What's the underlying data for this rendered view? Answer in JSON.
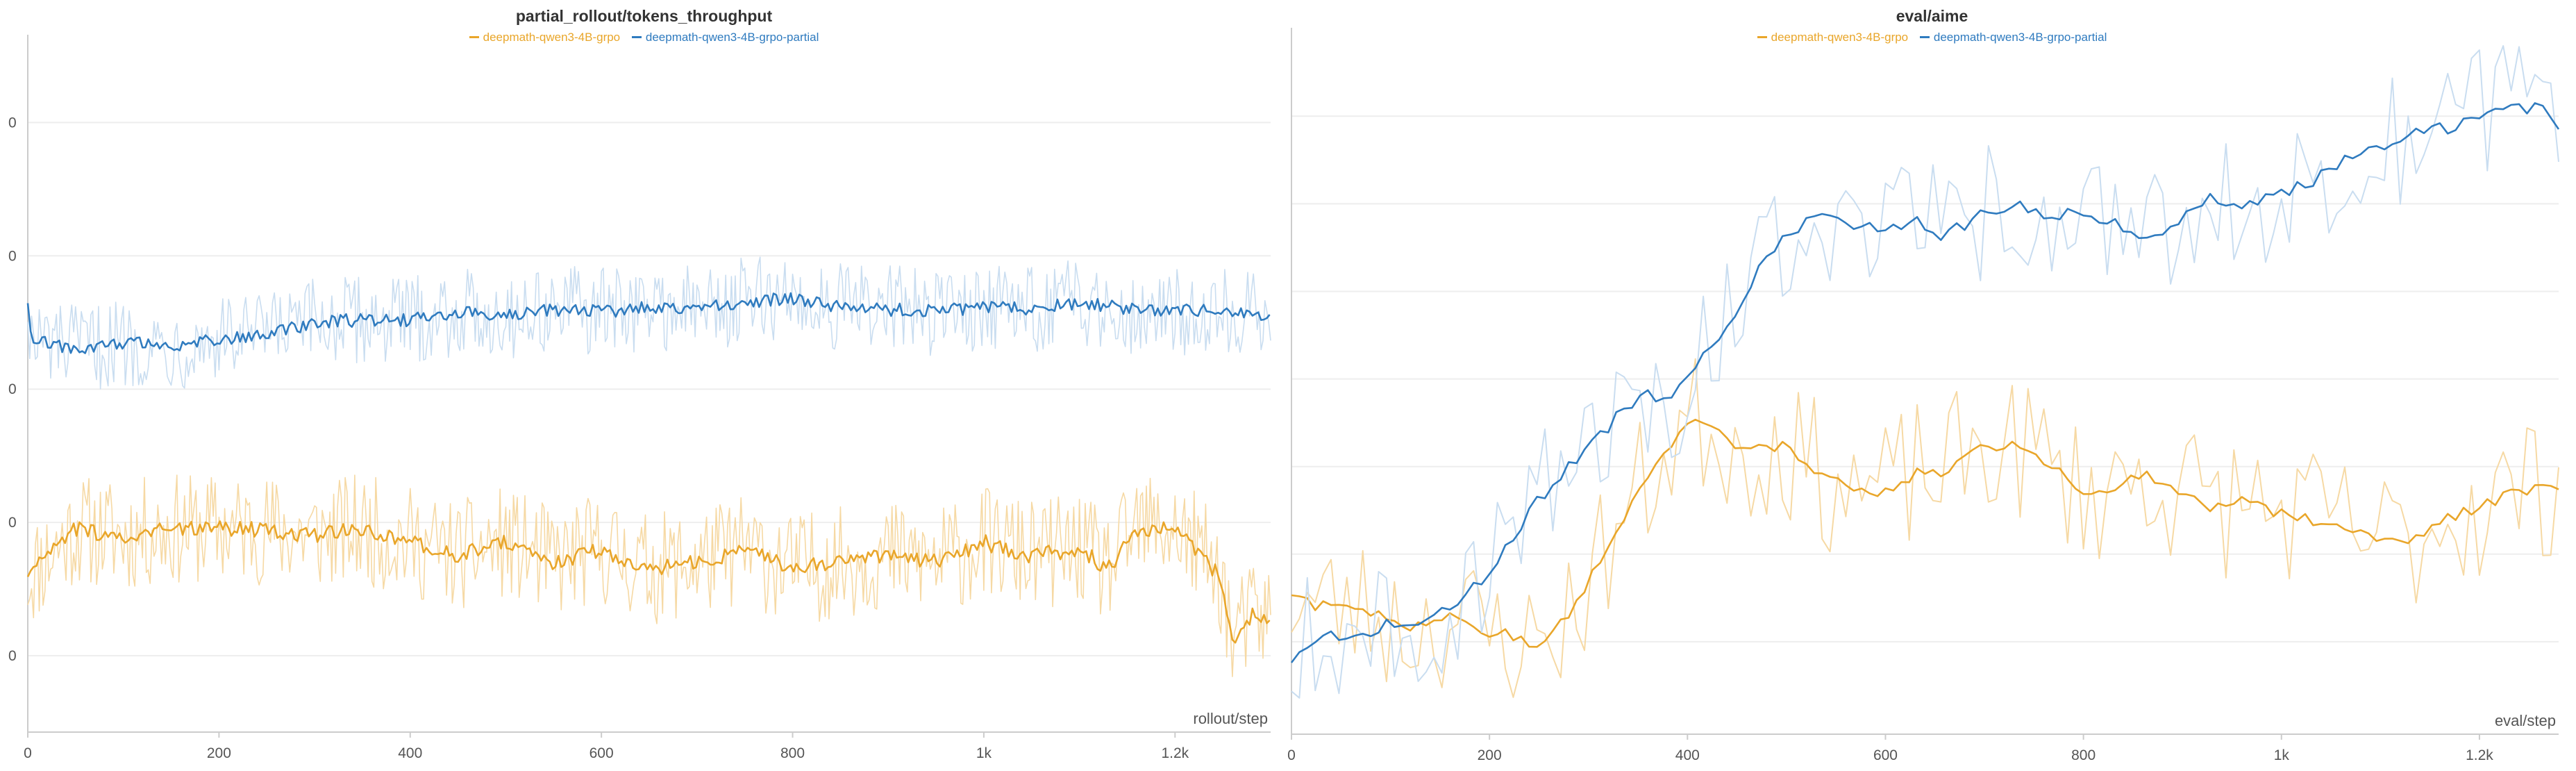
{
  "colors": {
    "grpo": "#E9A62A",
    "grpo_raw": "#F6D9A4",
    "partial": "#2F7BBF",
    "partial_raw": "#C9DDF0",
    "grid": "#EEEEEE",
    "axis": "#CCCCCC"
  },
  "chart_data": [
    {
      "type": "line",
      "title": "partial_rollout/tokens_throughput",
      "xlabel": "rollout/step",
      "ylabel": "",
      "x_ticks": [
        "0",
        "200",
        "400",
        "600",
        "800",
        "1k",
        "1.2k"
      ],
      "x_tick_values": [
        0,
        200,
        400,
        600,
        800,
        1000,
        1200
      ],
      "xlim": [
        0,
        1300
      ],
      "y_ticks": [
        "0",
        "0",
        "0",
        "0",
        "0"
      ],
      "y_tick_levels": [
        5,
        4,
        3,
        2,
        1
      ],
      "ylim": [
        0.5,
        5.45
      ],
      "legend": [
        "deepmath-qwen3-4B-grpo",
        "deepmath-qwen3-4B-grpo-partial"
      ],
      "legend_placement": "top-center",
      "grid": true,
      "series": [
        {
          "name": "deepmath-qwen3-4B-grpo",
          "color_key": "grpo",
          "x": [
            0,
            50,
            100,
            150,
            200,
            250,
            300,
            350,
            400,
            450,
            500,
            550,
            600,
            650,
            700,
            750,
            800,
            850,
            900,
            950,
            1000,
            1050,
            1100,
            1130,
            1160,
            1200,
            1230,
            1250,
            1260,
            1280,
            1300
          ],
          "y": [
            1.6,
            1.95,
            1.9,
            1.95,
            1.95,
            1.95,
            1.9,
            1.95,
            1.85,
            1.75,
            1.85,
            1.7,
            1.8,
            1.65,
            1.7,
            1.8,
            1.65,
            1.7,
            1.75,
            1.7,
            1.85,
            1.75,
            1.8,
            1.65,
            1.95,
            1.95,
            1.75,
            1.55,
            1.1,
            1.3,
            1.28
          ]
        },
        {
          "name": "deepmath-qwen3-4B-grpo-partial",
          "color_key": "partial",
          "x": [
            0,
            5,
            15,
            50,
            100,
            150,
            200,
            250,
            300,
            350,
            400,
            450,
            500,
            550,
            600,
            650,
            700,
            750,
            800,
            850,
            900,
            950,
            1000,
            1050,
            1100,
            1150,
            1200,
            1250,
            1300
          ],
          "y": [
            3.65,
            3.3,
            3.35,
            3.3,
            3.35,
            3.32,
            3.38,
            3.4,
            3.5,
            3.52,
            3.52,
            3.58,
            3.55,
            3.6,
            3.58,
            3.62,
            3.6,
            3.66,
            3.68,
            3.62,
            3.6,
            3.58,
            3.62,
            3.6,
            3.65,
            3.6,
            3.58,
            3.6,
            3.55
          ]
        }
      ]
    },
    {
      "type": "line",
      "title": "eval/aime",
      "xlabel": "eval/step",
      "ylabel": "",
      "x_ticks": [
        "0",
        "200",
        "400",
        "600",
        "800",
        "1k",
        "1.2k"
      ],
      "x_tick_values": [
        0,
        200,
        400,
        600,
        800,
        1000,
        1200
      ],
      "xlim": [
        0,
        1280
      ],
      "ylim": [
        0,
        1
      ],
      "legend": [
        "deepmath-qwen3-4B-grpo",
        "deepmath-qwen3-4B-grpo-partial"
      ],
      "legend_placement": "top-center",
      "grid": true,
      "series": [
        {
          "name": "deepmath-qwen3-4B-grpo",
          "color_key": "grpo",
          "x": [
            0,
            20,
            50,
            80,
            100,
            120,
            140,
            160,
            180,
            200,
            220,
            240,
            260,
            280,
            300,
            330,
            360,
            380,
            400,
            420,
            440,
            460,
            480,
            500,
            530,
            560,
            600,
            630,
            660,
            700,
            730,
            760,
            800,
            830,
            860,
            900,
            930,
            960,
            1000,
            1030,
            1060,
            1100,
            1130,
            1160,
            1200,
            1230,
            1260,
            1280
          ],
          "y": [
            0.2,
            0.185,
            0.18,
            0.175,
            0.16,
            0.15,
            0.16,
            0.165,
            0.15,
            0.14,
            0.145,
            0.12,
            0.14,
            0.17,
            0.22,
            0.3,
            0.37,
            0.42,
            0.45,
            0.46,
            0.43,
            0.41,
            0.42,
            0.42,
            0.38,
            0.36,
            0.35,
            0.38,
            0.38,
            0.42,
            0.42,
            0.4,
            0.35,
            0.36,
            0.38,
            0.35,
            0.33,
            0.34,
            0.32,
            0.31,
            0.3,
            0.28,
            0.28,
            0.31,
            0.33,
            0.35,
            0.36,
            0.36
          ]
        },
        {
          "name": "deepmath-qwen3-4B-grpo-partial",
          "color_key": "partial",
          "x": [
            0,
            20,
            50,
            80,
            100,
            120,
            140,
            160,
            180,
            200,
            220,
            240,
            260,
            280,
            300,
            320,
            340,
            360,
            380,
            400,
            420,
            440,
            460,
            480,
            500,
            520,
            540,
            560,
            600,
            630,
            660,
            700,
            730,
            760,
            800,
            830,
            860,
            900,
            930,
            960,
            1000,
            1030,
            1060,
            1100,
            1130,
            1160,
            1200,
            1230,
            1260,
            1280
          ],
          "y": [
            0.1,
            0.135,
            0.14,
            0.145,
            0.16,
            0.15,
            0.16,
            0.18,
            0.2,
            0.24,
            0.28,
            0.32,
            0.36,
            0.39,
            0.42,
            0.45,
            0.48,
            0.5,
            0.49,
            0.52,
            0.56,
            0.6,
            0.65,
            0.7,
            0.73,
            0.75,
            0.76,
            0.75,
            0.74,
            0.76,
            0.73,
            0.77,
            0.78,
            0.76,
            0.77,
            0.75,
            0.72,
            0.76,
            0.79,
            0.78,
            0.8,
            0.81,
            0.84,
            0.86,
            0.88,
            0.89,
            0.91,
            0.92,
            0.92,
            0.9
          ]
        }
      ]
    }
  ]
}
